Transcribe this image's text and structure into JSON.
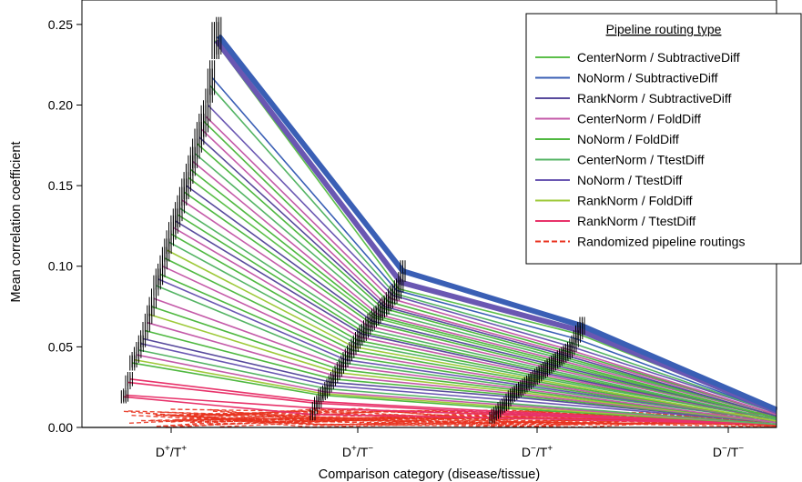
{
  "chart_data": {
    "type": "line",
    "title": "",
    "xlabel": "Comparison category (disease/tissue)",
    "ylabel": "Mean correlation coefficient",
    "categories": [
      "D+/T+",
      "D+/T−",
      "D−/T+",
      "D−/T−"
    ],
    "category_labels": [
      {
        "main": "D",
        "sup1": "+",
        "sep": "/T",
        "sup2": "+"
      },
      {
        "main": "D",
        "sup1": "+",
        "sep": "/T",
        "sup2": "−"
      },
      {
        "main": "D",
        "sup1": "−",
        "sep": "/T",
        "sup2": "+"
      },
      {
        "main": "D",
        "sup1": "−",
        "sep": "/T",
        "sup2": "−"
      }
    ],
    "ylim": [
      0.0,
      0.255
    ],
    "y_ticks": [
      "0.00",
      "0.05",
      "0.10",
      "0.15",
      "0.20",
      "0.25"
    ],
    "grid": false,
    "legend": {
      "title": "Pipeline routing type",
      "position": "top-right",
      "entries": [
        {
          "label": "CenterNorm / SubtractiveDiff",
          "color": "#5cbf4a",
          "dashed": false
        },
        {
          "label": "NoNorm / SubtractiveDiff",
          "color": "#3a5fb5",
          "dashed": false
        },
        {
          "label": "RankNorm / SubtractiveDiff",
          "color": "#584a9c",
          "dashed": false
        },
        {
          "label": "CenterNorm  / FoldDiff",
          "color": "#c45aa8",
          "dashed": false
        },
        {
          "label": "NoNorm / FoldDiff",
          "color": "#4fb840",
          "dashed": false
        },
        {
          "label": "CenterNorm / TtestDiff",
          "color": "#54b464",
          "dashed": false
        },
        {
          "label": "NoNorm / TtestDiff",
          "color": "#6a57b2",
          "dashed": false
        },
        {
          "label": "RankNorm / FoldDiff",
          "color": "#9ec93a",
          "dashed": false
        },
        {
          "label": "RankNorm / TtestDiff",
          "color": "#e8326a",
          "dashed": false
        },
        {
          "label": "Randomized pipeline routings",
          "color": "#e8321e",
          "dashed": true
        }
      ]
    },
    "series": [
      {
        "group": "NoNorm / SubtractiveDiff",
        "values": [
          0.243,
          0.097,
          0.063,
          0.011
        ],
        "weight": "heavy"
      },
      {
        "group": "NoNorm / TtestDiff",
        "values": [
          0.24,
          0.09,
          0.06,
          0.01
        ],
        "weight": "heavy"
      },
      {
        "group": "CenterNorm / SubtractiveDiff",
        "values": [
          0.24,
          0.086,
          0.058,
          0.01
        ]
      },
      {
        "group": "NoNorm / SubtractiveDiff",
        "values": [
          0.217,
          0.085,
          0.055,
          0.009
        ]
      },
      {
        "group": "CenterNorm / TtestDiff",
        "values": [
          0.212,
          0.083,
          0.052,
          0.009
        ]
      },
      {
        "group": "NoNorm / TtestDiff",
        "values": [
          0.2,
          0.082,
          0.05,
          0.009
        ]
      },
      {
        "group": "CenterNorm  / FoldDiff",
        "values": [
          0.193,
          0.08,
          0.048,
          0.008
        ]
      },
      {
        "group": "NoNorm / FoldDiff",
        "values": [
          0.19,
          0.078,
          0.047,
          0.008
        ]
      },
      {
        "group": "CenterNorm  / FoldDiff",
        "values": [
          0.185,
          0.076,
          0.046,
          0.008
        ]
      },
      {
        "group": "RankNorm / SubtractiveDiff",
        "values": [
          0.18,
          0.075,
          0.045,
          0.007
        ]
      },
      {
        "group": "NoNorm / FoldDiff",
        "values": [
          0.176,
          0.074,
          0.044,
          0.007
        ]
      },
      {
        "group": "CenterNorm / TtestDiff",
        "values": [
          0.17,
          0.072,
          0.043,
          0.007
        ]
      },
      {
        "group": "CenterNorm  / FoldDiff",
        "values": [
          0.165,
          0.07,
          0.042,
          0.007
        ]
      },
      {
        "group": "NoNorm / FoldDiff",
        "values": [
          0.16,
          0.069,
          0.041,
          0.006
        ]
      },
      {
        "group": "CenterNorm / SubtractiveDiff",
        "values": [
          0.155,
          0.068,
          0.04,
          0.006
        ]
      },
      {
        "group": "RankNorm / SubtractiveDiff",
        "values": [
          0.15,
          0.066,
          0.039,
          0.006
        ]
      },
      {
        "group": "NoNorm / FoldDiff",
        "values": [
          0.146,
          0.065,
          0.038,
          0.006
        ]
      },
      {
        "group": "CenterNorm  / FoldDiff",
        "values": [
          0.141,
          0.063,
          0.037,
          0.006
        ]
      },
      {
        "group": "CenterNorm / TtestDiff",
        "values": [
          0.136,
          0.061,
          0.036,
          0.005
        ]
      },
      {
        "group": "NoNorm / FoldDiff",
        "values": [
          0.132,
          0.059,
          0.035,
          0.005
        ]
      },
      {
        "group": "RankNorm / SubtractiveDiff",
        "values": [
          0.128,
          0.058,
          0.034,
          0.005
        ]
      },
      {
        "group": "CenterNorm  / FoldDiff",
        "values": [
          0.124,
          0.056,
          0.033,
          0.005
        ]
      },
      {
        "group": "NoNorm / FoldDiff",
        "values": [
          0.12,
          0.054,
          0.032,
          0.005
        ]
      },
      {
        "group": "CenterNorm / TtestDiff",
        "values": [
          0.115,
          0.052,
          0.031,
          0.005
        ]
      },
      {
        "group": "RankNorm / FoldDiff",
        "values": [
          0.11,
          0.05,
          0.03,
          0.004
        ]
      },
      {
        "group": "NoNorm / FoldDiff",
        "values": [
          0.105,
          0.048,
          0.029,
          0.004
        ]
      },
      {
        "group": "CenterNorm  / FoldDiff",
        "values": [
          0.1,
          0.046,
          0.028,
          0.004
        ]
      },
      {
        "group": "NoNorm / FoldDiff",
        "values": [
          0.095,
          0.044,
          0.027,
          0.004
        ]
      },
      {
        "group": "NoNorm / TtestDiff",
        "values": [
          0.092,
          0.042,
          0.026,
          0.004
        ]
      },
      {
        "group": "CenterNorm / TtestDiff",
        "values": [
          0.088,
          0.04,
          0.025,
          0.004
        ]
      },
      {
        "group": "CenterNorm  / FoldDiff",
        "values": [
          0.08,
          0.038,
          0.024,
          0.003
        ]
      },
      {
        "group": "NoNorm / FoldDiff",
        "values": [
          0.075,
          0.036,
          0.023,
          0.003
        ]
      },
      {
        "group": "RankNorm / FoldDiff",
        "values": [
          0.07,
          0.034,
          0.022,
          0.003
        ]
      },
      {
        "group": "CenterNorm  / FoldDiff",
        "values": [
          0.065,
          0.032,
          0.021,
          0.003
        ]
      },
      {
        "group": "NoNorm / FoldDiff",
        "values": [
          0.06,
          0.03,
          0.02,
          0.003
        ]
      },
      {
        "group": "RankNorm / SubtractiveDiff",
        "values": [
          0.055,
          0.028,
          0.019,
          0.003
        ]
      },
      {
        "group": "NoNorm / TtestDiff",
        "values": [
          0.052,
          0.026,
          0.017,
          0.003
        ]
      },
      {
        "group": "CenterNorm / TtestDiff",
        "values": [
          0.048,
          0.024,
          0.015,
          0.002
        ]
      },
      {
        "group": "CenterNorm  / FoldDiff",
        "values": [
          0.045,
          0.022,
          0.014,
          0.002
        ]
      },
      {
        "group": "RankNorm / FoldDiff",
        "values": [
          0.042,
          0.021,
          0.013,
          0.002
        ]
      },
      {
        "group": "NoNorm / FoldDiff",
        "values": [
          0.04,
          0.02,
          0.012,
          0.002
        ]
      },
      {
        "group": "RankNorm / TtestDiff",
        "values": [
          0.03,
          0.016,
          0.01,
          0.002
        ]
      },
      {
        "group": "RankNorm / TtestDiff",
        "values": [
          0.028,
          0.015,
          0.009,
          0.002
        ]
      },
      {
        "group": "RankNorm / TtestDiff",
        "values": [
          0.02,
          0.012,
          0.008,
          0.002
        ]
      },
      {
        "group": "RankNorm / TtestDiff",
        "values": [
          0.019,
          0.008,
          0.006,
          0.002
        ]
      }
    ],
    "randomized_band": {
      "group": "Randomized pipeline routings",
      "range_by_category": [
        [
          0.0,
          0.012
        ],
        [
          0.0,
          0.012
        ],
        [
          0.0,
          0.011
        ],
        [
          0.0,
          0.01
        ]
      ]
    }
  }
}
